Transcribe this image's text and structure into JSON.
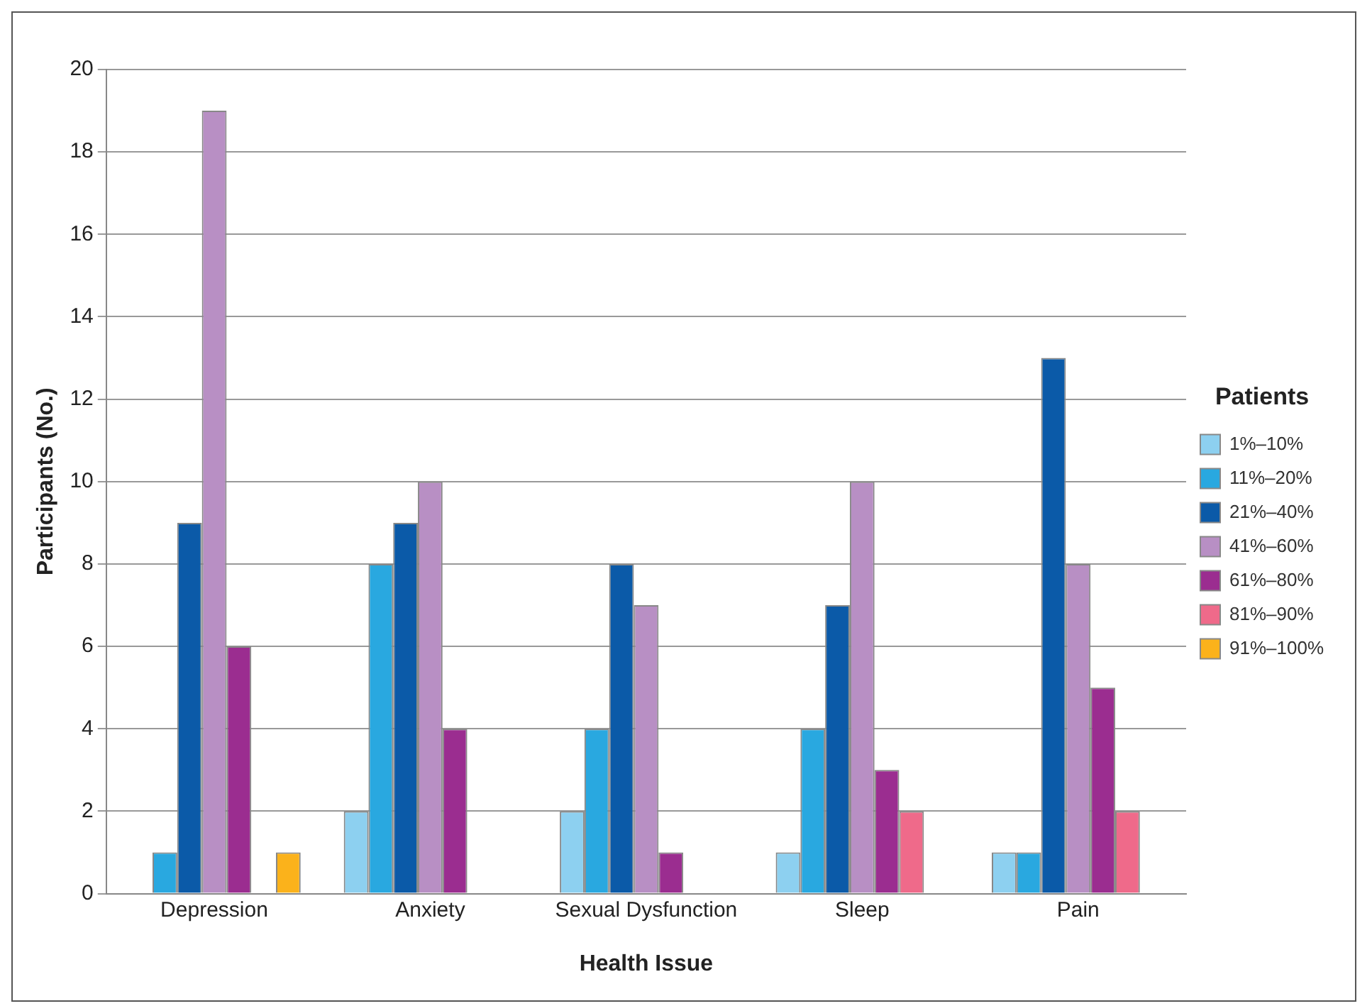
{
  "chart_data": {
    "type": "bar",
    "xlabel": "Health Issue",
    "ylabel": "Participants (No.)",
    "legend_title": "Patients",
    "legend": "right",
    "grid": "y",
    "categories": [
      "Depression",
      "Anxiety",
      "Sexual Dysfunction",
      "Sleep",
      "Pain"
    ],
    "ylim": [
      0,
      20
    ],
    "yticks": [
      0,
      2,
      4,
      6,
      8,
      10,
      12,
      14,
      16,
      18,
      20
    ],
    "series": [
      {
        "name": "1%–10%",
        "color": "#8dd0f0",
        "values": [
          0,
          2,
          2,
          1,
          1
        ]
      },
      {
        "name": "11%–20%",
        "color": "#29a8e0",
        "values": [
          1,
          8,
          4,
          4,
          1
        ]
      },
      {
        "name": "21%–40%",
        "color": "#0b5aa8",
        "values": [
          9,
          9,
          8,
          7,
          13
        ]
      },
      {
        "name": "41%–60%",
        "color": "#b88fc4",
        "values": [
          19,
          10,
          7,
          10,
          8
        ]
      },
      {
        "name": "61%–80%",
        "color": "#9b2d90",
        "values": [
          6,
          4,
          1,
          3,
          5
        ]
      },
      {
        "name": "81%–90%",
        "color": "#ef6a8a",
        "values": [
          0,
          0,
          0,
          2,
          2
        ]
      },
      {
        "name": "91%–100%",
        "color": "#fbb21b",
        "values": [
          1,
          0,
          0,
          0,
          0
        ]
      }
    ]
  }
}
